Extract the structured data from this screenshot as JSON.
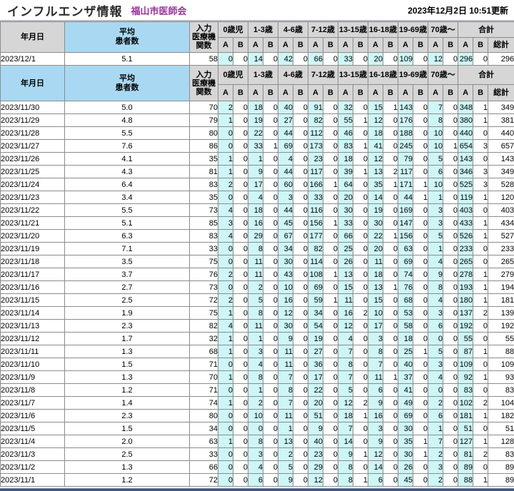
{
  "header": {
    "title": "インフルエンザ情報",
    "org": "福山市医師会",
    "updated": "2023年12月2日 10:51更新"
  },
  "table": {
    "col_headers": {
      "date": "年月日",
      "avg_lines": [
        "平均",
        "患者数"
      ],
      "institutions_lines": [
        "入力",
        "医療機",
        "関数"
      ],
      "age_groups": [
        "0歳児",
        "1-3歳",
        "4-6歳",
        "7-12歳",
        "13-15歳",
        "16-18歳",
        "19-69歳",
        "70歳～"
      ],
      "sub_a": "A",
      "sub_b": "B",
      "total_group": "合計",
      "grand_total": "総計"
    },
    "colors": {
      "header_bg": "#d6d6d6",
      "header_blue_bg": "#a9d9f2",
      "type_a_column_bg": "#cdf6f6",
      "org_text": "#993399",
      "bottom_bar": "#41547d"
    },
    "sections": [
      {
        "date_header_blue": false,
        "rows": [
          {
            "date": "2023/12/1",
            "avg": "5.1",
            "inst": "58",
            "ab": [
              0,
              0,
              14,
              0,
              42,
              0,
              66,
              0,
              33,
              0,
              20,
              0,
              109,
              0,
              12,
              0
            ],
            "total_a": 296,
            "total_b": 0,
            "grand": 296
          }
        ]
      },
      {
        "date_header_blue": true,
        "rows": [
          {
            "date": "2023/11/30",
            "avg": "5.0",
            "inst": "70",
            "ab": [
              2,
              0,
              18,
              0,
              40,
              0,
              91,
              0,
              32,
              0,
              15,
              1,
              143,
              0,
              7,
              0
            ],
            "total_a": 348,
            "total_b": 1,
            "grand": 349
          },
          {
            "date": "2023/11/29",
            "avg": "4.8",
            "inst": "79",
            "ab": [
              1,
              0,
              19,
              0,
              27,
              0,
              82,
              0,
              55,
              1,
              12,
              0,
              176,
              0,
              8,
              0
            ],
            "total_a": 380,
            "total_b": 1,
            "grand": 381
          },
          {
            "date": "2023/11/28",
            "avg": "5.5",
            "inst": "80",
            "ab": [
              0,
              0,
              22,
              0,
              44,
              0,
              112,
              0,
              46,
              0,
              18,
              0,
              188,
              0,
              10,
              0
            ],
            "total_a": 440,
            "total_b": 0,
            "grand": 440
          },
          {
            "date": "2023/11/27",
            "avg": "7.6",
            "inst": "86",
            "ab": [
              0,
              0,
              33,
              1,
              69,
              0,
              173,
              0,
              83,
              1,
              41,
              0,
              245,
              0,
              10,
              1
            ],
            "total_a": 654,
            "total_b": 3,
            "grand": 657
          },
          {
            "date": "2023/11/26",
            "avg": "4.1",
            "inst": "35",
            "ab": [
              1,
              0,
              1,
              0,
              4,
              0,
              23,
              0,
              18,
              0,
              12,
              0,
              79,
              0,
              5,
              0
            ],
            "total_a": 143,
            "total_b": 0,
            "grand": 143
          },
          {
            "date": "2023/11/25",
            "avg": "4.3",
            "inst": "81",
            "ab": [
              1,
              0,
              9,
              0,
              44,
              0,
              117,
              0,
              39,
              1,
              13,
              2,
              117,
              0,
              6,
              0
            ],
            "total_a": 346,
            "total_b": 3,
            "grand": 349
          },
          {
            "date": "2023/11/24",
            "avg": "6.4",
            "inst": "83",
            "ab": [
              2,
              0,
              17,
              0,
              60,
              0,
              166,
              1,
              64,
              0,
              35,
              1,
              171,
              1,
              10,
              0
            ],
            "total_a": 525,
            "total_b": 3,
            "grand": 528
          },
          {
            "date": "2023/11/23",
            "avg": "3.4",
            "inst": "35",
            "ab": [
              0,
              0,
              4,
              0,
              3,
              0,
              33,
              0,
              20,
              0,
              14,
              0,
              44,
              1,
              1,
              0
            ],
            "total_a": 119,
            "total_b": 1,
            "grand": 120
          },
          {
            "date": "2023/11/22",
            "avg": "5.5",
            "inst": "73",
            "ab": [
              4,
              0,
              18,
              0,
              44,
              0,
              116,
              0,
              30,
              0,
              19,
              0,
              169,
              0,
              3,
              0
            ],
            "total_a": 403,
            "total_b": 0,
            "grand": 403
          },
          {
            "date": "2023/11/21",
            "avg": "5.1",
            "inst": "85",
            "ab": [
              3,
              0,
              16,
              0,
              45,
              0,
              156,
              1,
              33,
              0,
              30,
              0,
              147,
              0,
              3,
              0
            ],
            "total_a": 433,
            "total_b": 1,
            "grand": 434
          },
          {
            "date": "2023/11/20",
            "avg": "6.3",
            "inst": "83",
            "ab": [
              4,
              0,
              29,
              0,
              67,
              0,
              177,
              0,
              66,
              0,
              22,
              1,
              156,
              0,
              5,
              0
            ],
            "total_a": 526,
            "total_b": 1,
            "grand": 527
          },
          {
            "date": "2023/11/19",
            "avg": "7.1",
            "inst": "33",
            "ab": [
              0,
              0,
              8,
              0,
              34,
              0,
              82,
              0,
              25,
              0,
              20,
              0,
              63,
              0,
              1,
              0
            ],
            "total_a": 233,
            "total_b": 0,
            "grand": 233
          },
          {
            "date": "2023/11/18",
            "avg": "3.5",
            "inst": "75",
            "ab": [
              0,
              0,
              11,
              0,
              30,
              0,
              114,
              0,
              26,
              0,
              11,
              0,
              69,
              0,
              4,
              0
            ],
            "total_a": 265,
            "total_b": 0,
            "grand": 265
          },
          {
            "date": "2023/11/17",
            "avg": "3.7",
            "inst": "76",
            "ab": [
              2,
              0,
              11,
              0,
              43,
              0,
              108,
              1,
              13,
              0,
              18,
              0,
              74,
              0,
              9,
              0
            ],
            "total_a": 278,
            "total_b": 1,
            "grand": 279
          },
          {
            "date": "2023/11/16",
            "avg": "2.7",
            "inst": "73",
            "ab": [
              0,
              0,
              2,
              0,
              10,
              0,
              69,
              0,
              15,
              0,
              13,
              1,
              76,
              0,
              8,
              0
            ],
            "total_a": 193,
            "total_b": 1,
            "grand": 194
          },
          {
            "date": "2023/11/15",
            "avg": "2.5",
            "inst": "72",
            "ab": [
              2,
              0,
              5,
              0,
              16,
              0,
              59,
              1,
              11,
              0,
              15,
              0,
              68,
              0,
              4,
              0
            ],
            "total_a": 180,
            "total_b": 1,
            "grand": 181
          },
          {
            "date": "2023/11/14",
            "avg": "1.9",
            "inst": "75",
            "ab": [
              1,
              0,
              8,
              0,
              12,
              0,
              34,
              0,
              16,
              2,
              10,
              0,
              53,
              0,
              3,
              0
            ],
            "total_a": 137,
            "total_b": 2,
            "grand": 139
          },
          {
            "date": "2023/11/13",
            "avg": "2.3",
            "inst": "82",
            "ab": [
              4,
              0,
              11,
              0,
              30,
              0,
              54,
              0,
              12,
              0,
              17,
              0,
              58,
              0,
              6,
              0
            ],
            "total_a": 192,
            "total_b": 0,
            "grand": 192
          },
          {
            "date": "2023/11/12",
            "avg": "1.7",
            "inst": "32",
            "ab": [
              1,
              0,
              1,
              0,
              9,
              0,
              19,
              0,
              4,
              0,
              3,
              0,
              18,
              0,
              0,
              0
            ],
            "total_a": 55,
            "total_b": 0,
            "grand": 55
          },
          {
            "date": "2023/11/11",
            "avg": "1.3",
            "inst": "68",
            "ab": [
              1,
              0,
              3,
              0,
              11,
              0,
              27,
              0,
              7,
              0,
              8,
              0,
              25,
              1,
              5,
              0
            ],
            "total_a": 87,
            "total_b": 1,
            "grand": 88
          },
          {
            "date": "2023/11/10",
            "avg": "1.5",
            "inst": "71",
            "ab": [
              0,
              0,
              4,
              0,
              11,
              0,
              36,
              0,
              8,
              0,
              7,
              0,
              40,
              0,
              3,
              0
            ],
            "total_a": 109,
            "total_b": 0,
            "grand": 109
          },
          {
            "date": "2023/11/9",
            "avg": "1.3",
            "inst": "70",
            "ab": [
              1,
              0,
              8,
              0,
              7,
              0,
              17,
              0,
              7,
              0,
              11,
              1,
              37,
              0,
              4,
              0
            ],
            "total_a": 92,
            "total_b": 1,
            "grand": 93
          },
          {
            "date": "2023/11/8",
            "avg": "1.2",
            "inst": "71",
            "ab": [
              0,
              0,
              1,
              0,
              8,
              0,
              22,
              0,
              5,
              0,
              6,
              0,
              41,
              0,
              0,
              0
            ],
            "total_a": 83,
            "total_b": 0,
            "grand": 83
          },
          {
            "date": "2023/11/7",
            "avg": "1.4",
            "inst": "74",
            "ab": [
              1,
              0,
              2,
              0,
              7,
              0,
              20,
              0,
              12,
              2,
              9,
              0,
              49,
              0,
              2,
              0
            ],
            "total_a": 102,
            "total_b": 2,
            "grand": 104
          },
          {
            "date": "2023/11/6",
            "avg": "2.3",
            "inst": "80",
            "ab": [
              0,
              0,
              10,
              0,
              11,
              0,
              51,
              0,
              18,
              1,
              16,
              0,
              69,
              0,
              6,
              0
            ],
            "total_a": 181,
            "total_b": 1,
            "grand": 182
          },
          {
            "date": "2023/11/5",
            "avg": "1.5",
            "inst": "34",
            "ab": [
              0,
              0,
              0,
              0,
              1,
              0,
              9,
              0,
              7,
              0,
              3,
              0,
              30,
              0,
              1,
              0
            ],
            "total_a": 51,
            "total_b": 0,
            "grand": 51
          },
          {
            "date": "2023/11/4",
            "avg": "2.0",
            "inst": "63",
            "ab": [
              1,
              0,
              8,
              0,
              13,
              0,
              40,
              0,
              14,
              0,
              9,
              0,
              35,
              1,
              7,
              0
            ],
            "total_a": 127,
            "total_b": 1,
            "grand": 128
          },
          {
            "date": "2023/11/3",
            "avg": "2.5",
            "inst": "33",
            "ab": [
              0,
              0,
              3,
              0,
              2,
              0,
              23,
              0,
              9,
              1,
              12,
              0,
              30,
              1,
              2,
              0
            ],
            "total_a": 81,
            "total_b": 2,
            "grand": 83
          },
          {
            "date": "2023/11/2",
            "avg": "1.3",
            "inst": "66",
            "ab": [
              0,
              0,
              4,
              0,
              5,
              0,
              29,
              0,
              8,
              0,
              14,
              0,
              26,
              0,
              3,
              0
            ],
            "total_a": 89,
            "total_b": 0,
            "grand": 89
          },
          {
            "date": "2023/11/1",
            "avg": "1.2",
            "inst": "72",
            "ab": [
              0,
              0,
              6,
              0,
              9,
              0,
              12,
              0,
              8,
              1,
              6,
              0,
              45,
              0,
              2,
              0
            ],
            "total_a": 88,
            "total_b": 1,
            "grand": 89
          }
        ]
      }
    ]
  }
}
